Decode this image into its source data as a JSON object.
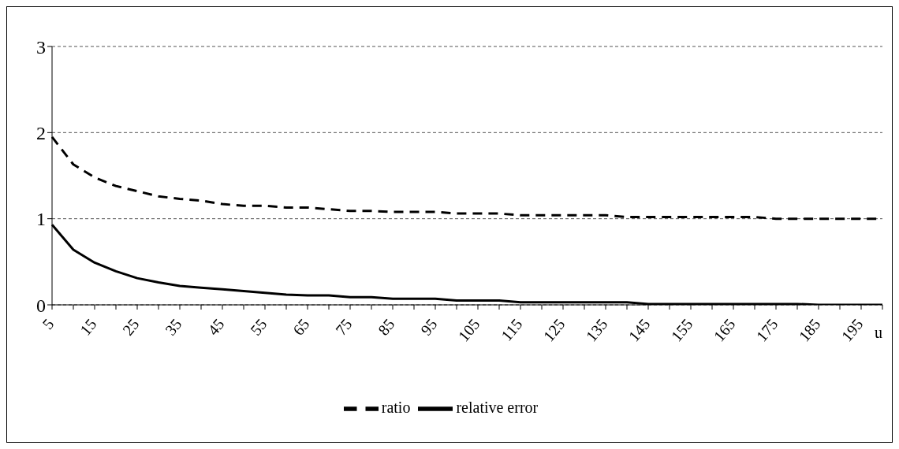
{
  "chart_data": {
    "type": "line",
    "xlabel": "u",
    "categories": [
      "5",
      null,
      "15",
      null,
      "25",
      null,
      "35",
      null,
      "45",
      null,
      "55",
      null,
      "65",
      null,
      "75",
      null,
      "85",
      null,
      "95",
      null,
      "105",
      null,
      "115",
      null,
      "125",
      null,
      "135",
      null,
      "145",
      null,
      "155",
      null,
      "165",
      null,
      "175",
      null,
      "185",
      null,
      "195",
      null
    ],
    "series": [
      {
        "name": "ratio",
        "color": "#000000",
        "line_style": "dashed",
        "values": [
          1.95,
          1.63,
          1.48,
          1.38,
          1.32,
          1.26,
          1.23,
          1.21,
          1.17,
          1.15,
          1.15,
          1.13,
          1.13,
          1.11,
          1.09,
          1.09,
          1.08,
          1.08,
          1.08,
          1.06,
          1.06,
          1.06,
          1.04,
          1.04,
          1.04,
          1.04,
          1.04,
          1.02,
          1.02,
          1.02,
          1.02,
          1.02,
          1.02,
          1.02,
          1.0,
          1.0,
          1.0,
          1.0,
          1.0,
          1.0
        ]
      },
      {
        "name": "relative error",
        "color": "#000000",
        "line_style": "solid",
        "values": [
          0.93,
          0.64,
          0.49,
          0.39,
          0.31,
          0.26,
          0.22,
          0.2,
          0.18,
          0.16,
          0.14,
          0.12,
          0.11,
          0.11,
          0.09,
          0.09,
          0.07,
          0.07,
          0.07,
          0.05,
          0.05,
          0.05,
          0.03,
          0.03,
          0.03,
          0.03,
          0.03,
          0.03,
          0.01,
          0.01,
          0.01,
          0.01,
          0.01,
          0.01,
          0.01,
          0.01,
          0,
          0,
          0,
          0
        ]
      }
    ],
    "ylim": [
      0,
      3
    ],
    "yticks": [
      0,
      1,
      2,
      3
    ],
    "grid": "y",
    "legend": "bottom",
    "marker": "none"
  }
}
